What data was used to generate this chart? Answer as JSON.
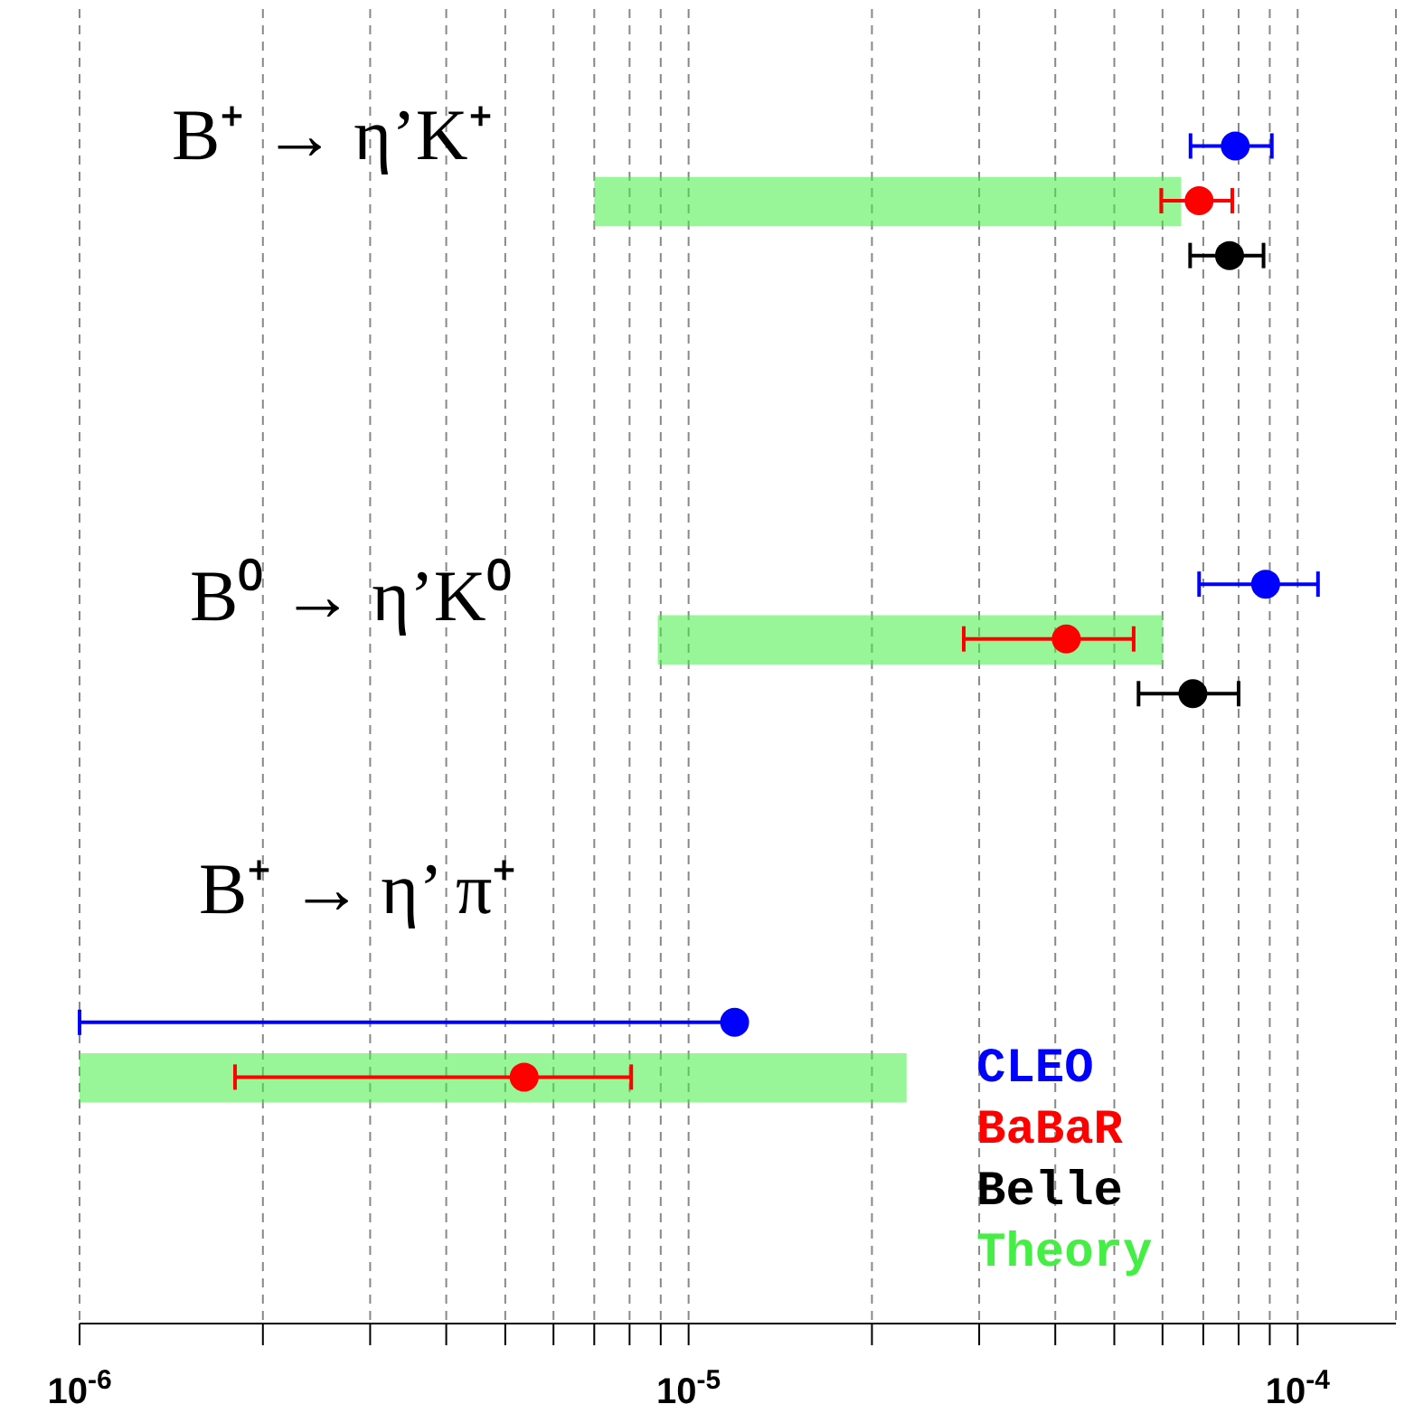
{
  "chart_data": {
    "type": "scatter",
    "orientation": "horizontal",
    "log": "x",
    "grid": "x",
    "marker": "circle",
    "categories": [
      null,
      null,
      null,
      null,
      null,
      null,
      null,
      null,
      null,
      null,
      null,
      null,
      null,
      null,
      null,
      null,
      null,
      null,
      null,
      null,
      null,
      null,
      null,
      null
    ],
    "xlim": [
      1e-06,
      0.000145
    ],
    "xticks": [
      {
        "value": 1e-06,
        "label": "10$^{-6}$"
      },
      {
        "value": 2e-06,
        "label": null
      },
      {
        "value": 3e-06,
        "label": null
      },
      {
        "value": 4e-06,
        "label": null
      },
      {
        "value": 5e-06,
        "label": null
      },
      {
        "value": 6e-06,
        "label": null
      },
      {
        "value": 7e-06,
        "label": null
      },
      {
        "value": 8e-06,
        "label": null
      },
      {
        "value": 9e-06,
        "label": null
      },
      {
        "value": 1e-05,
        "label": "10$^{-5}$"
      },
      {
        "value": 2e-05,
        "label": null
      },
      {
        "value": 3e-05,
        "label": null
      },
      {
        "value": 4e-05,
        "label": null
      },
      {
        "value": 5e-05,
        "label": null
      },
      {
        "value": 6e-05,
        "label": null
      },
      {
        "value": 7e-05,
        "label": null
      },
      {
        "value": 8e-05,
        "label": null
      },
      {
        "value": 9e-05,
        "label": null
      },
      {
        "value": 0.0001,
        "label": "10$^{-4}$"
      }
    ],
    "annotations": [
      "B⁺ → η’K⁺",
      "B⁰ → η’K⁰",
      "B⁺ → η’ π⁺"
    ],
    "series": [
      {
        "name": "CLEO",
        "color": "#0000ff",
        "values": [
          null,
          null,
          7.9e-05,
          null,
          null,
          null,
          null,
          null,
          null,
          null,
          8.86e-05,
          null,
          null,
          null,
          null,
          null,
          null,
          null,
          1.19e-05,
          null,
          null,
          null,
          null,
          null
        ],
        "errors": [
          null,
          null,
          [
            6.67e-05,
            9.07e-05
          ],
          null,
          null,
          null,
          null,
          null,
          null,
          null,
          [
            6.89e-05,
            0.000108
          ],
          null,
          null,
          null,
          null,
          null,
          null,
          null,
          [
            1e-06,
            1.19e-05
          ],
          null,
          null,
          null,
          null,
          null
        ]
      },
      {
        "name": "BaBaR",
        "color": "#ff0000",
        "values": [
          null,
          null,
          null,
          6.89e-05,
          null,
          null,
          null,
          null,
          null,
          null,
          null,
          4.17e-05,
          null,
          null,
          null,
          null,
          null,
          null,
          null,
          5.37e-06,
          null,
          null,
          null,
          null
        ],
        "errors": [
          null,
          null,
          null,
          [
            5.97e-05,
            7.81e-05
          ],
          null,
          null,
          null,
          null,
          null,
          null,
          null,
          [
            2.83e-05,
            5.38e-05
          ],
          null,
          null,
          null,
          null,
          null,
          null,
          null,
          [
            1.8e-06,
            8.05e-06
          ],
          null,
          null,
          null,
          null
        ]
      },
      {
        "name": "Belle",
        "color": "#000000",
        "values": [
          null,
          null,
          null,
          null,
          7.73e-05,
          null,
          null,
          null,
          null,
          null,
          null,
          null,
          6.73e-05,
          null,
          null,
          null,
          null,
          null,
          null,
          null,
          null,
          null,
          null,
          null
        ],
        "errors": [
          null,
          null,
          null,
          null,
          [
            6.66e-05,
            8.79e-05
          ],
          null,
          null,
          null,
          null,
          null,
          null,
          null,
          [
            5.48e-05,
            8e-05
          ],
          null,
          null,
          null,
          null,
          null,
          null,
          null,
          null,
          null,
          null,
          null
        ]
      },
      {
        "name": "Theory",
        "type": "bar",
        "color": "#44ee44",
        "base": [
          null,
          null,
          null,
          7e-06,
          null,
          null,
          null,
          null,
          null,
          null,
          null,
          8.9e-06,
          null,
          null,
          null,
          null,
          null,
          null,
          null,
          1e-06,
          null,
          null,
          null,
          null
        ],
        "values": [
          null,
          null,
          null,
          5.74e-05,
          null,
          null,
          null,
          null,
          null,
          null,
          null,
          5.12e-05,
          null,
          null,
          null,
          null,
          null,
          null,
          null,
          2.18e-05,
          null,
          null,
          null,
          null
        ]
      }
    ]
  }
}
